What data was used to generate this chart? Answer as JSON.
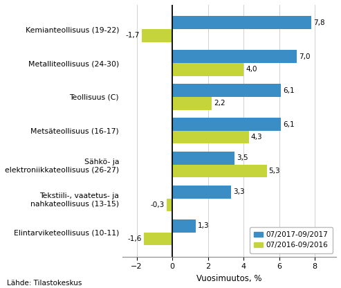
{
  "categories": [
    "Kemianteollisuus (19-22)",
    "Metalliteollisuus (24-30)",
    "Teollisuus (C)",
    "Metsäteollisuus (16-17)",
    "Sähkö- ja\nelektroniikkateollisuus (26-27)",
    "Tekstiili-, vaatetus- ja\nnahkateollisuus (13-15)",
    "Elintarviketeollisuus (10-11)"
  ],
  "series_2017": [
    7.8,
    7.0,
    6.1,
    6.1,
    3.5,
    3.3,
    1.3
  ],
  "series_2016": [
    -1.7,
    4.0,
    2.2,
    4.3,
    5.3,
    -0.3,
    -1.6
  ],
  "color_2017": "#3A8DC5",
  "color_2016": "#C5D43A",
  "legend_2017": "07/2017-09/2017",
  "legend_2016": "07/2016-09/2016",
  "xlabel": "Vuosimuutos, %",
  "xlim": [
    -2.8,
    9.2
  ],
  "xticks": [
    -2,
    0,
    2,
    4,
    6,
    8
  ],
  "footer": "Lähde: Tilastokeskus",
  "bar_height": 0.38,
  "background_color": "#ffffff"
}
